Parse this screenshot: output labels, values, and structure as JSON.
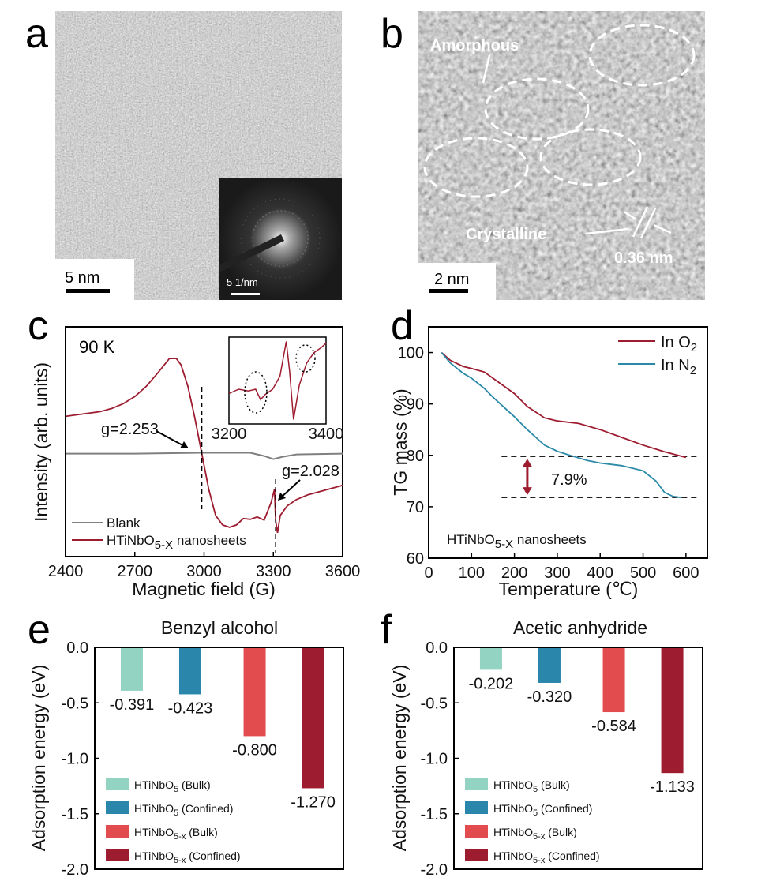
{
  "colors": {
    "teal_light": "#93d3c2",
    "teal_dark": "#2a86ab",
    "red_light": "#e34c4e",
    "red_dark": "#9e1c30",
    "blank": "#808080",
    "n2": "#2a8aa8"
  },
  "panel_a": {
    "letter": "a",
    "scale_bar": "5 nm",
    "inset_scale_bar": "5 1/nm"
  },
  "panel_b": {
    "letter": "b",
    "amorphous": "Amorphous",
    "crystalline": "Crystalline",
    "spacing": "0.36 nm",
    "scale_bar": "2 nm"
  },
  "chart_data": [
    {
      "type": "line",
      "panel": "c",
      "letter": "c",
      "annotation_temp": "90 K",
      "xlabel": "Magnetic field (G)",
      "ylabel": "Intensity (arb. units)",
      "xlim": [
        2400,
        3600
      ],
      "xticks": [
        2400,
        2700,
        3000,
        3300,
        3600
      ],
      "ylim": [
        -1.3,
        1.6
      ],
      "annotations": [
        "g=2.253",
        "g=2.028"
      ],
      "g_markers_field": [
        2990,
        3310
      ],
      "legend": [
        {
          "name": "Blank"
        },
        {
          "name_base": "HTiNbO",
          "name_sub": "5-X",
          "name_rest": " nanosheets"
        }
      ],
      "series": [
        {
          "name": "HTiNbO5-X nanosheets",
          "x": [
            2400,
            2450,
            2500,
            2550,
            2600,
            2650,
            2700,
            2750,
            2800,
            2850,
            2880,
            2900,
            2930,
            2960,
            2990,
            3020,
            3050,
            3080,
            3110,
            3140,
            3170,
            3200,
            3230,
            3260,
            3290,
            3305,
            3310,
            3318,
            3330,
            3360,
            3400,
            3450,
            3500,
            3550,
            3600
          ],
          "y": [
            0.47,
            0.49,
            0.51,
            0.53,
            0.57,
            0.63,
            0.72,
            0.85,
            1.02,
            1.2,
            1.2,
            1.12,
            0.85,
            0.45,
            0.0,
            -0.45,
            -0.78,
            -0.9,
            -0.93,
            -0.9,
            -0.82,
            -0.83,
            -0.8,
            -0.84,
            -0.62,
            -0.45,
            -0.85,
            -1.0,
            -0.78,
            -0.66,
            -0.58,
            -0.52,
            -0.48,
            -0.44,
            -0.4
          ]
        },
        {
          "name": "Blank",
          "x": [
            2400,
            2700,
            3000,
            3200,
            3260,
            3300,
            3340,
            3400,
            3600
          ],
          "y": [
            0.0,
            0.0,
            0.01,
            0.01,
            -0.03,
            -0.07,
            -0.04,
            -0.01,
            0.0
          ]
        }
      ],
      "inset": {
        "xlim": [
          3200,
          3400
        ],
        "xticks": [
          3200,
          3400
        ],
        "x": [
          3200,
          3220,
          3240,
          3255,
          3265,
          3275,
          3290,
          3305,
          3318,
          3325,
          3333,
          3345,
          3360,
          3375,
          3390,
          3400
        ],
        "y": [
          0.35,
          0.4,
          0.38,
          0.4,
          0.28,
          0.34,
          0.4,
          0.55,
          0.95,
          0.6,
          0.05,
          0.45,
          0.7,
          0.82,
          0.88,
          0.93
        ]
      }
    },
    {
      "type": "line",
      "panel": "d",
      "letter": "d",
      "xlabel": "Temperature (℃)",
      "ylabel": "TG mass (%)",
      "xlim": [
        0,
        650
      ],
      "ylim": [
        60,
        105
      ],
      "xticks": [
        0,
        100,
        200,
        300,
        400,
        500,
        600
      ],
      "yticks": [
        60,
        70,
        80,
        90,
        100
      ],
      "annotation": "7.9%",
      "sample_base": "HTiNbO",
      "sample_sub": "5-X",
      "sample_rest": " nanosheets",
      "reference_lines": [
        79.8,
        71.8
      ],
      "series": [
        {
          "name_base": "In O",
          "name_sub": "2",
          "color": "#9e1c30",
          "x": [
            30,
            50,
            80,
            100,
            130,
            150,
            200,
            230,
            270,
            300,
            350,
            400,
            450,
            500,
            550,
            600
          ],
          "y": [
            100,
            98.5,
            97.3,
            96.9,
            96.2,
            95,
            92,
            89.5,
            87.3,
            86.7,
            86.2,
            85,
            83.5,
            82,
            80.7,
            79.6
          ]
        },
        {
          "name_base": "In N",
          "name_sub": "2",
          "color": "#2a8aa8",
          "x": [
            30,
            50,
            80,
            100,
            130,
            150,
            200,
            230,
            270,
            300,
            330,
            370,
            400,
            450,
            500,
            530,
            550,
            570,
            590
          ],
          "y": [
            100,
            98,
            96,
            95,
            93,
            91.3,
            87.5,
            85,
            82,
            80.8,
            80,
            79,
            78.5,
            78,
            77,
            75,
            72.8,
            72,
            71.8
          ]
        }
      ]
    },
    {
      "type": "bar",
      "panel": "e",
      "letter": "e",
      "title": "Benzyl alcohol",
      "ylabel": "Adsorption energy (eV)",
      "ylim": [
        -2.0,
        0.0
      ],
      "yticks": [
        "0.0",
        "-0.5",
        "-1.0",
        "-1.5",
        "-2.0"
      ],
      "categories": [
        "HTiNbO5 (Bulk)",
        "HTiNbO5 (Confined)",
        "HTiNbO5-x (Bulk)",
        "HTiNbO5-x (Confined)"
      ],
      "values": [
        -0.391,
        -0.423,
        -0.8,
        -1.27
      ],
      "value_labels": [
        "-0.391",
        "-0.423",
        "-0.800",
        "-1.270"
      ]
    },
    {
      "type": "bar",
      "panel": "f",
      "letter": "f",
      "title": "Acetic anhydride",
      "ylabel": "Adsorption energy (eV)",
      "ylim": [
        -2.0,
        0.0
      ],
      "yticks": [
        "0.0",
        "-0.5",
        "-1.0",
        "-1.5",
        "-2.0"
      ],
      "categories": [
        "HTiNbO5 (Bulk)",
        "HTiNbO5 (Confined)",
        "HTiNbO5-x (Bulk)",
        "HTiNbO5-x (Confined)"
      ],
      "values": [
        -0.202,
        -0.32,
        -0.584,
        -1.133
      ],
      "value_labels": [
        "-0.202",
        "-0.320",
        "-0.584",
        "-1.133"
      ]
    }
  ],
  "bar_legend": [
    {
      "base": "HTiNbO",
      "sub": "5",
      "rest": " (Bulk)",
      "color": "#93d3c2"
    },
    {
      "base": "HTiNbO",
      "sub": "5",
      "rest": " (Confined)",
      "color": "#2a86ab"
    },
    {
      "base": "HTiNbO",
      "sub": "5-x",
      "rest": " (Bulk)",
      "color": "#e34c4e"
    },
    {
      "base": "HTiNbO",
      "sub": "5-x",
      "rest": " (Confined)",
      "color": "#9e1c30"
    }
  ]
}
